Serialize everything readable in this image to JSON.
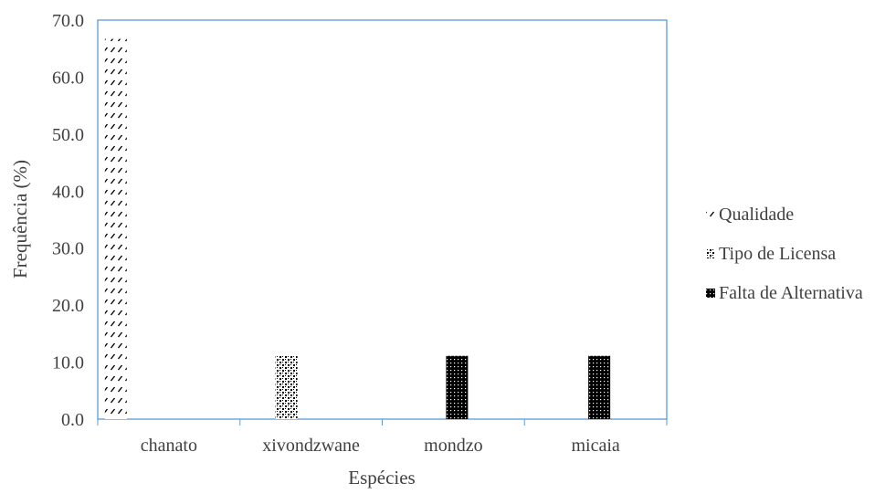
{
  "chart_data": {
    "type": "bar",
    "title": "",
    "xlabel": "Espécies",
    "ylabel": "Frequência (%)",
    "ylim": [
      0,
      70
    ],
    "y_ticks": [
      "0.0",
      "10.0",
      "20.0",
      "30.0",
      "40.0",
      "50.0",
      "60.0",
      "70.0"
    ],
    "grid": false,
    "legend_position": "right",
    "categories": [
      "chanato",
      "xivondzwane",
      "mondzo",
      "micaia"
    ],
    "series": [
      {
        "name": "Qualidade",
        "pattern": "diagonal-dash",
        "values": [
          66.7,
          0,
          0,
          0
        ]
      },
      {
        "name": "Tipo de Licensa",
        "pattern": "checker",
        "values": [
          0,
          11.1,
          0,
          0
        ]
      },
      {
        "name": "Falta de Alternativa",
        "pattern": "dense-dots",
        "values": [
          0,
          0,
          11.1,
          11.1
        ]
      }
    ],
    "colors": {
      "plot_border": "#5b9bd5",
      "text": "#404040",
      "bar_ink": "#000000"
    }
  }
}
